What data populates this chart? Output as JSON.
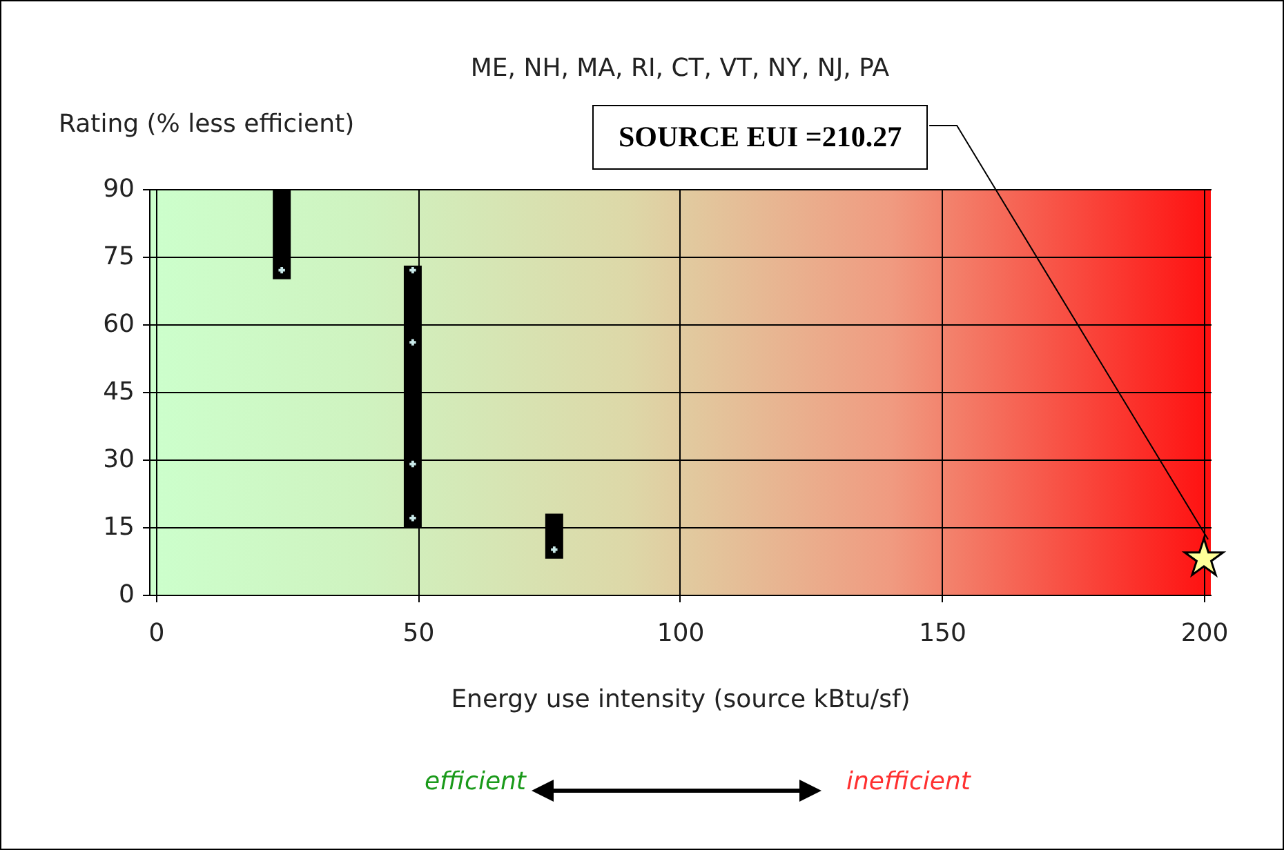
{
  "chart_data": {
    "type": "bar",
    "title": "ME, NH, MA, RI, CT, VT, NY, NJ, PA",
    "xlabel": "Energy use intensity (source kBtu/sf)",
    "ylabel": "Rating (% less efficient)",
    "annotations": [
      "SOURCE EUI =210.27",
      "efficient",
      "inefficient"
    ],
    "series": [
      {
        "color": "#000000",
        "x": [
          24,
          49,
          76
        ],
        "base": [
          70,
          15,
          8
        ],
        "values": [
          20,
          58,
          10
        ]
      },
      {
        "type": "scatter",
        "color": "#c8e8e8",
        "marker": "cross",
        "x": [
          24,
          49,
          49,
          49,
          49,
          76
        ],
        "values": [
          72,
          72,
          56,
          29,
          17,
          10
        ]
      },
      {
        "type": "scatter",
        "color": "#ffff99",
        "marker": "star",
        "x": [
          200
        ],
        "values": [
          8
        ]
      }
    ],
    "xlim": [
      0,
      200
    ],
    "xticks": [
      0,
      50,
      100,
      150,
      200
    ],
    "ylim": [
      0,
      90
    ],
    "yticks": [
      0,
      15,
      30,
      45,
      60,
      75,
      90
    ],
    "grid": true
  }
}
